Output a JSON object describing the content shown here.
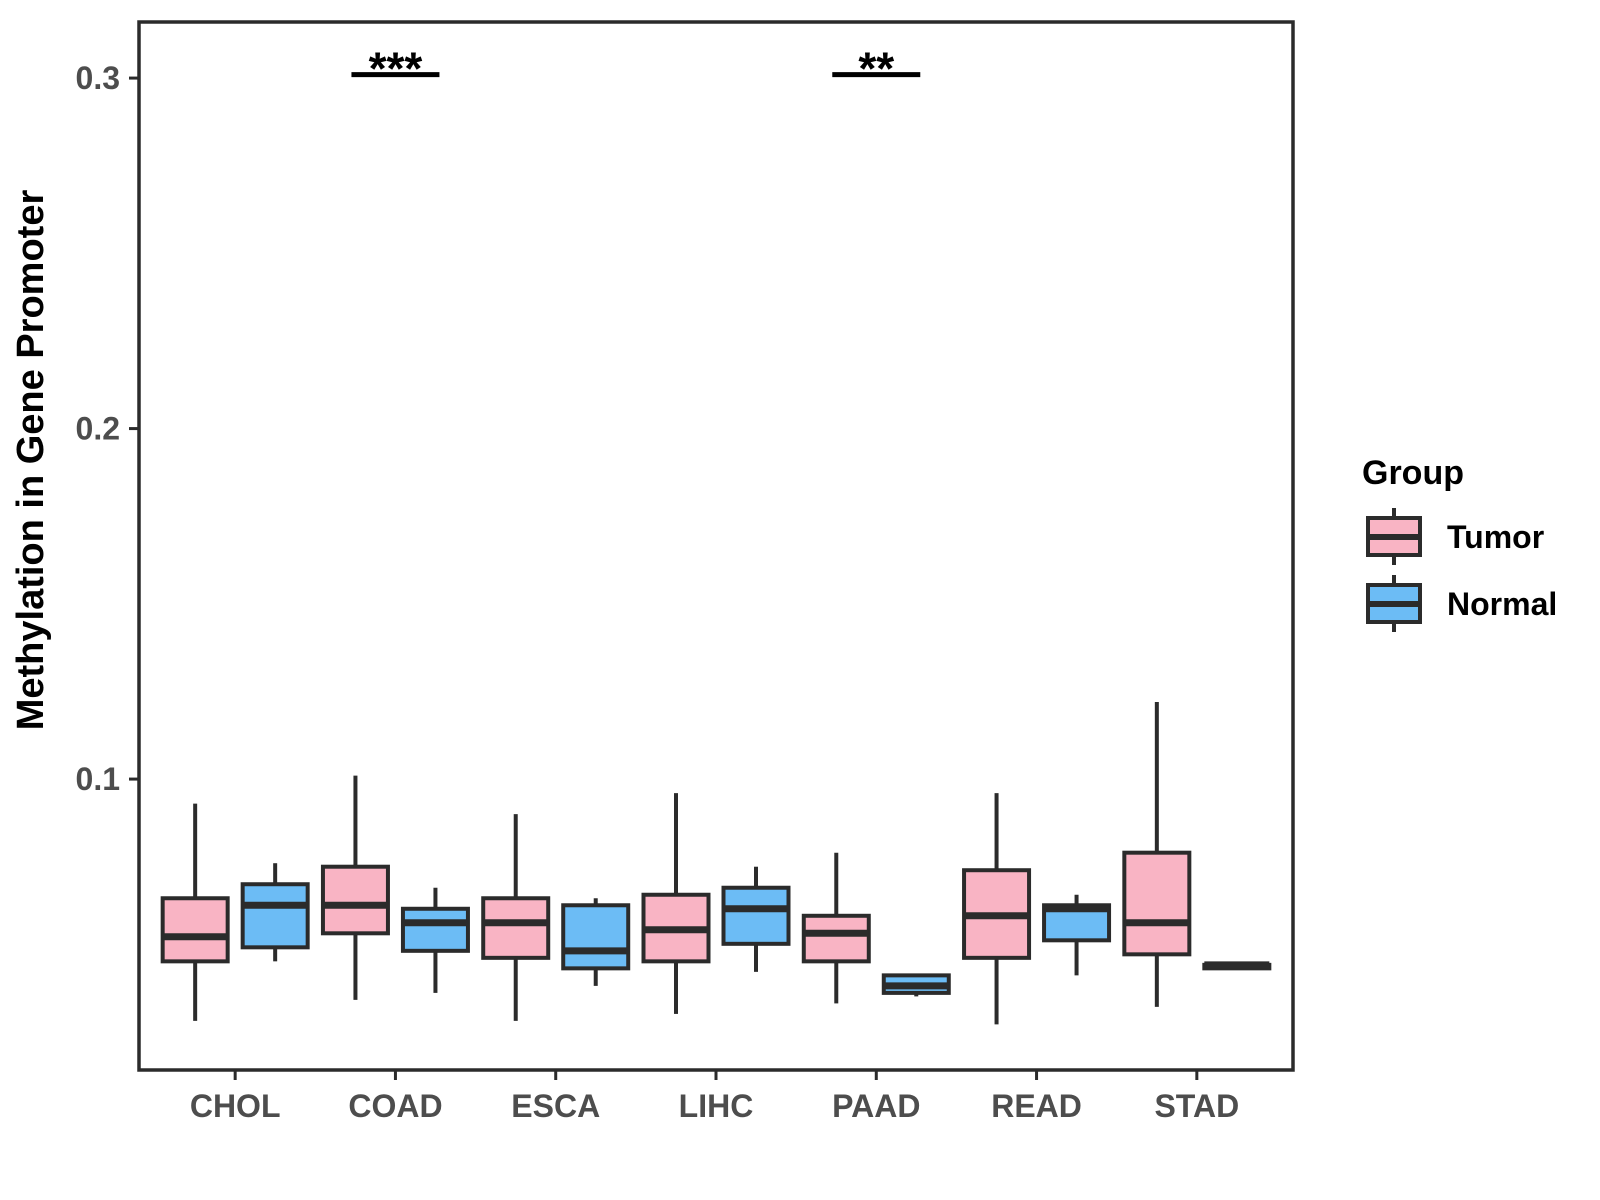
{
  "chart_data": {
    "type": "grouped_boxplot",
    "title": "",
    "xlabel": "",
    "ylabel": "Methylation in Gene Promoter",
    "categories": [
      "CHOL",
      "COAD",
      "ESCA",
      "LIHC",
      "PAAD",
      "READ",
      "STAD"
    ],
    "y_ticks": [
      "0.1",
      "0.2",
      "0.3"
    ],
    "y_tick_values": [
      0.1,
      0.2,
      0.3
    ],
    "y_range": [
      0.017,
      0.316
    ],
    "grid": "off",
    "legend": {
      "title": "Group",
      "position": "right",
      "entries": [
        {
          "label": "Tumor",
          "color": "#F9B4C4"
        },
        {
          "label": "Normal",
          "color": "#6CBCF5"
        }
      ]
    },
    "series": [
      {
        "name": "Tumor",
        "color": "#F9B4C4",
        "boxes": [
          {
            "category": "CHOL",
            "low": 0.031,
            "q1": 0.048,
            "median": 0.055,
            "q3": 0.066,
            "high": 0.093
          },
          {
            "category": "COAD",
            "low": 0.037,
            "q1": 0.056,
            "median": 0.064,
            "q3": 0.075,
            "high": 0.101
          },
          {
            "category": "ESCA",
            "low": 0.031,
            "q1": 0.049,
            "median": 0.059,
            "q3": 0.066,
            "high": 0.09
          },
          {
            "category": "LIHC",
            "low": 0.033,
            "q1": 0.048,
            "median": 0.057,
            "q3": 0.067,
            "high": 0.096
          },
          {
            "category": "PAAD",
            "low": 0.036,
            "q1": 0.048,
            "median": 0.056,
            "q3": 0.061,
            "high": 0.079
          },
          {
            "category": "READ",
            "low": 0.03,
            "q1": 0.049,
            "median": 0.061,
            "q3": 0.074,
            "high": 0.096
          },
          {
            "category": "STAD",
            "low": 0.035,
            "q1": 0.05,
            "median": 0.059,
            "q3": 0.079,
            "high": 0.122
          }
        ]
      },
      {
        "name": "Normal",
        "color": "#6CBCF5",
        "boxes": [
          {
            "category": "CHOL",
            "low": 0.048,
            "q1": 0.052,
            "median": 0.064,
            "q3": 0.07,
            "high": 0.076
          },
          {
            "category": "COAD",
            "low": 0.039,
            "q1": 0.051,
            "median": 0.059,
            "q3": 0.063,
            "high": 0.069
          },
          {
            "category": "ESCA",
            "low": 0.041,
            "q1": 0.046,
            "median": 0.051,
            "q3": 0.064,
            "high": 0.066
          },
          {
            "category": "LIHC",
            "low": 0.045,
            "q1": 0.053,
            "median": 0.063,
            "q3": 0.069,
            "high": 0.075
          },
          {
            "category": "PAAD",
            "low": 0.038,
            "q1": 0.039,
            "median": 0.041,
            "q3": 0.044,
            "high": 0.044
          },
          {
            "category": "READ",
            "low": 0.044,
            "q1": 0.054,
            "median": 0.063,
            "q3": 0.064,
            "high": 0.067
          },
          {
            "category": "STAD",
            "low": 0.046,
            "q1": 0.046,
            "median": 0.047,
            "q3": 0.047,
            "high": 0.047
          }
        ]
      }
    ],
    "annotations": [
      {
        "category": "COAD",
        "label": "***",
        "bar_value": 0.301
      },
      {
        "category": "PAAD",
        "label": "**",
        "bar_value": 0.301
      }
    ],
    "colors": {
      "box_border": "#2B2B2B",
      "whisker": "#2B2B2B",
      "axis_line": "#2B2B2B",
      "axis_text": "#4D4D4D",
      "annotation": "#000000",
      "panel_background": "#FFFFFF"
    }
  }
}
